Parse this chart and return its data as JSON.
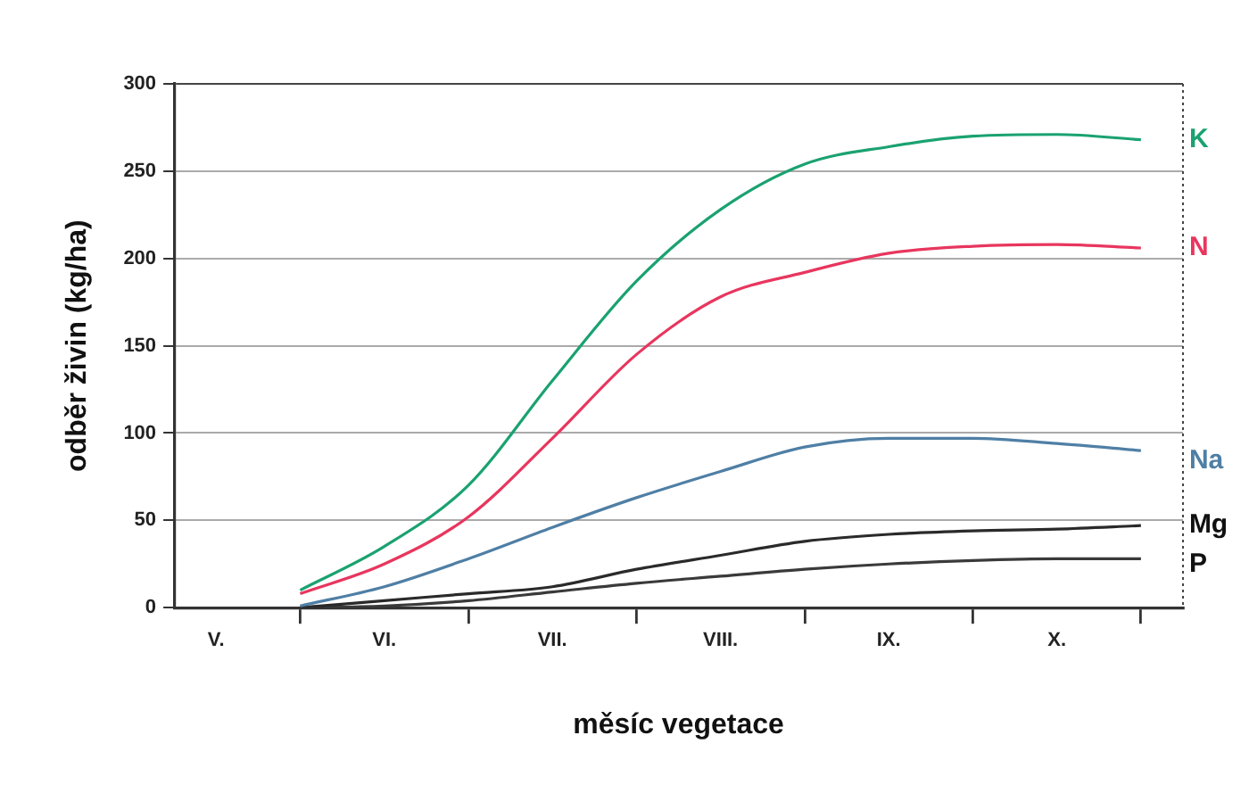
{
  "chart_data": {
    "type": "line",
    "xlabel": "měsíc vegetace",
    "ylabel": "odběr živin (kg/ha)",
    "categories": [
      "V.",
      null,
      "VI.",
      null,
      "VII.",
      null,
      "VIII.",
      null,
      "IX.",
      null,
      "X.",
      null
    ],
    "ylim": [
      0,
      300
    ],
    "yticks": [
      0,
      50,
      100,
      150,
      200,
      250,
      300
    ],
    "grid": "y",
    "legend": false,
    "marker": "none",
    "line_style": "solid",
    "series": [
      {
        "name": "K",
        "color": "#1aa270",
        "values": [
          null,
          10,
          35,
          70,
          130,
          187,
          228,
          254,
          264,
          270,
          271,
          268
        ]
      },
      {
        "name": "N",
        "color": "#e8365e",
        "values": [
          null,
          8,
          25,
          52,
          97,
          145,
          178,
          192,
          203,
          207,
          208,
          206
        ]
      },
      {
        "name": "Na",
        "color": "#4f7fa5",
        "values": [
          null,
          1,
          12,
          28,
          46,
          63,
          78,
          92,
          97,
          97,
          94,
          90
        ]
      },
      {
        "name": "Mg",
        "color": "#2a2a2a",
        "values": [
          null,
          0,
          4,
          8,
          12,
          22,
          30,
          38,
          42,
          44,
          45,
          47
        ]
      },
      {
        "name": "P",
        "color": "#3a3a3a",
        "values": [
          null,
          0,
          1,
          4,
          9,
          14,
          18,
          22,
          25,
          27,
          28,
          28
        ]
      }
    ]
  }
}
